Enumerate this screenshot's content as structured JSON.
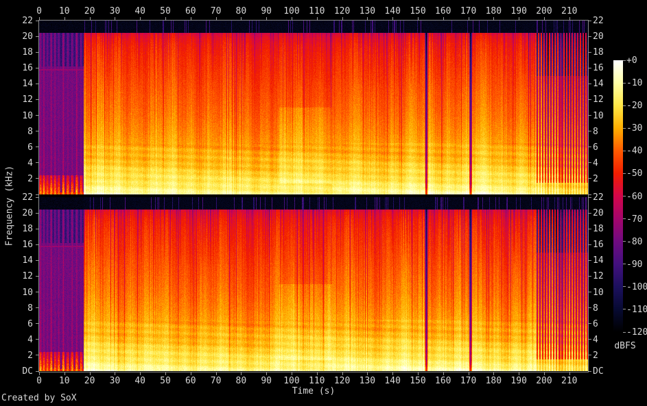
{
  "app": {
    "credit": "Created by SoX"
  },
  "colors": {
    "background": "#000000",
    "axis": "#9b9b9b",
    "text": "#d8d8d8",
    "frame": "#8b8b8b"
  },
  "chart_data": {
    "type": "heatmap",
    "variant": "audio-spectrogram-stereo",
    "title": "",
    "xlabel": "Time (s)",
    "ylabel": "Frequency (kHz)",
    "x_ticks_s": [
      0,
      10,
      20,
      30,
      40,
      50,
      60,
      70,
      80,
      90,
      100,
      110,
      120,
      130,
      140,
      150,
      160,
      170,
      180,
      190,
      200,
      210
    ],
    "x_range_s": [
      0,
      217.4
    ],
    "y_ticks_khz": [
      22,
      20,
      18,
      16,
      14,
      12,
      10,
      8,
      6,
      4,
      2
    ],
    "y_dc_label": "DC",
    "y_range_khz": [
      0,
      22
    ],
    "grid": false,
    "panels": [
      "channel-1-upper",
      "channel-2-lower"
    ],
    "colorbar": {
      "unit_label": "dBFS",
      "position": "right",
      "range_db": [
        0,
        -120
      ],
      "tick_labels": [
        "+0",
        "-10",
        "-20",
        "-30",
        "-40",
        "-50",
        "-60",
        "-70",
        "-80",
        "-90",
        "-100",
        "-110",
        "-120"
      ],
      "palette_stops": [
        {
          "db": 0,
          "color": "#ffffff"
        },
        {
          "db": -10,
          "color": "#ffffa6"
        },
        {
          "db": -20,
          "color": "#ffe746"
        },
        {
          "db": -30,
          "color": "#ffae00"
        },
        {
          "db": -40,
          "color": "#ff5a00"
        },
        {
          "db": -50,
          "color": "#f21d00"
        },
        {
          "db": -60,
          "color": "#d2064a"
        },
        {
          "db": -70,
          "color": "#a4056b"
        },
        {
          "db": -80,
          "color": "#700b80"
        },
        {
          "db": -90,
          "color": "#43107f"
        },
        {
          "db": -100,
          "color": "#1c105e"
        },
        {
          "db": -110,
          "color": "#070a32"
        },
        {
          "db": -120,
          "color": "#000000"
        }
      ]
    },
    "content_model": {
      "duration_s": 217.4,
      "lowpass_khz": 20.45,
      "level_curve_db": [
        [
          0,
          -8
        ],
        [
          0.3,
          -12
        ],
        [
          0.8,
          -15
        ],
        [
          1.5,
          -18
        ],
        [
          2,
          -20
        ],
        [
          3,
          -23.5
        ],
        [
          4,
          -26.5
        ],
        [
          5,
          -29
        ],
        [
          6,
          -31
        ],
        [
          8,
          -34.5
        ],
        [
          10,
          -37.5
        ],
        [
          12,
          -40
        ],
        [
          14,
          -42.5
        ],
        [
          16,
          -45
        ],
        [
          17.5,
          -47
        ],
        [
          19,
          -50
        ],
        [
          20,
          -54
        ],
        [
          20.45,
          -58
        ]
      ],
      "intro": {
        "end_s": 17.7,
        "bg_db": -80,
        "high_bg_db": -96,
        "line_khz": 15.75,
        "line_db": -72,
        "bursts_s": [
          0.6,
          1.9,
          3.3,
          4.8,
          6.3,
          7.8,
          9.6,
          11.4,
          13.1,
          14.9,
          16.6
        ]
      },
      "onset_s": 17.9,
      "bright_mid_region_s": [
        95,
        116
      ],
      "dropouts_s": [
        153.4,
        170.9
      ],
      "outro": {
        "start_s": 196.5,
        "stripe_period_s": 1.1
      },
      "transient_line_rate": 0.1
    }
  }
}
